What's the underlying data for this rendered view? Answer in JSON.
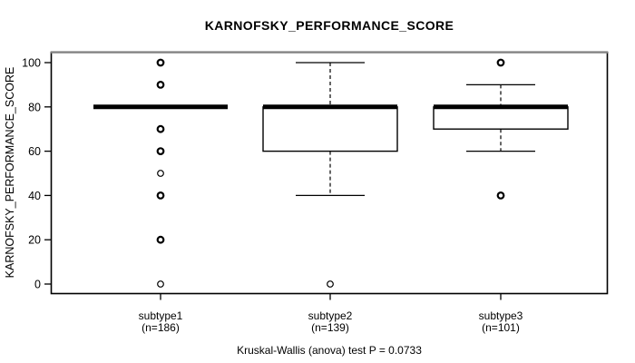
{
  "page": {
    "background": "#ffffff"
  },
  "chart_data": {
    "type": "boxplot",
    "title": "KARNOFSKY_PERFORMANCE_SCORE",
    "ylabel": "KARNOFSKY_PERFORMANCE_SCORE",
    "footer": "Kruskal-Wallis (anova) test P = 0.0733",
    "p_value": "0.0733",
    "ylim": [
      0,
      100
    ],
    "yticks": [
      0,
      20,
      40,
      60,
      80,
      100
    ],
    "grid": false,
    "legend": "none",
    "colors": {
      "box_fill": "#ffffff",
      "line": "#000000",
      "frame_top": "#838383"
    },
    "groups": [
      {
        "label": "subtype1",
        "n_label": "(n=186)",
        "n": 186,
        "q1": 80,
        "median": 80,
        "q3": 80,
        "whisker_low": 80,
        "whisker_high": 80,
        "outliers": [
          {
            "value": 100,
            "bold": true
          },
          {
            "value": 90,
            "bold": true
          },
          {
            "value": 70,
            "bold": true
          },
          {
            "value": 60,
            "bold": true
          },
          {
            "value": 50,
            "bold": false
          },
          {
            "value": 40,
            "bold": true
          },
          {
            "value": 20,
            "bold": true
          },
          {
            "value": 0,
            "bold": false
          }
        ]
      },
      {
        "label": "subtype2",
        "n_label": "(n=139)",
        "n": 139,
        "q1": 60,
        "median": 80,
        "q3": 80,
        "whisker_low": 40,
        "whisker_high": 100,
        "outliers": [
          {
            "value": 0,
            "bold": false
          }
        ]
      },
      {
        "label": "subtype3",
        "n_label": "(n=101)",
        "n": 101,
        "q1": 70,
        "median": 80,
        "q3": 80,
        "whisker_low": 60,
        "whisker_high": 90,
        "outliers": [
          {
            "value": 100,
            "bold": true
          },
          {
            "value": 40,
            "bold": true
          }
        ]
      }
    ]
  }
}
